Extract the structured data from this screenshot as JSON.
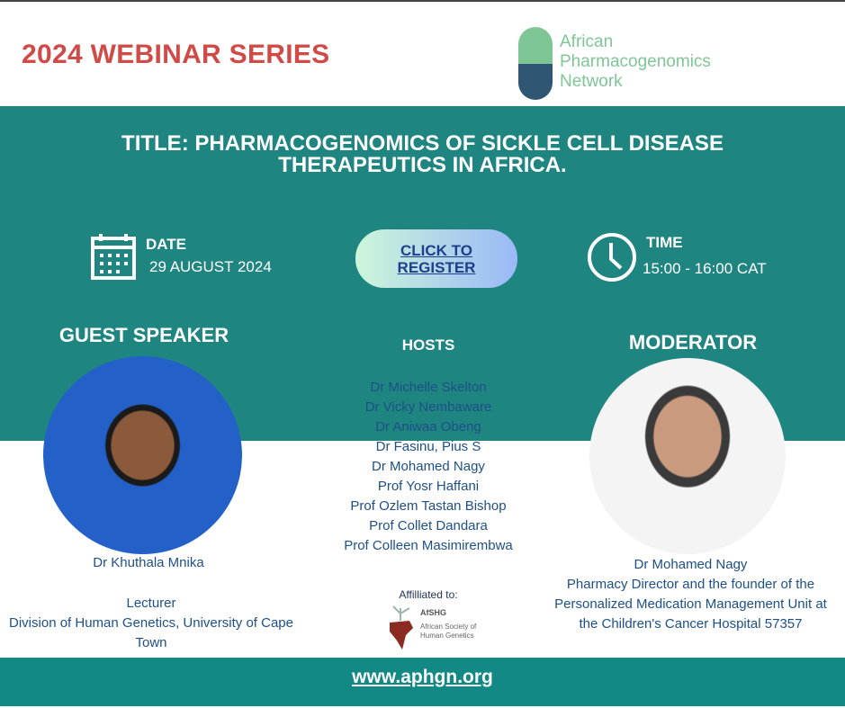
{
  "series_title": "2024 WEBINAR SERIES",
  "logo": {
    "line1": "African",
    "line2": "Pharmacogenomics",
    "line3": "Network"
  },
  "title": {
    "line1": "TITLE:  PHARMACOGENOMICS OF SICKLE CELL DISEASE",
    "line2": "THERAPEUTICS IN AFRICA."
  },
  "date": {
    "label": "DATE",
    "value": "29 AUGUST 2024",
    "icon": "calendar-icon"
  },
  "register": {
    "line1": "CLICK TO",
    "line2": "REGISTER"
  },
  "time": {
    "label": "TIME",
    "value": "15:00 - 16:00 CAT",
    "icon": "clock-icon"
  },
  "guest": {
    "heading": "GUEST SPEAKER",
    "name": "Dr Khuthala Mnika",
    "role": "Lecturer",
    "affiliation": "Division of Human Genetics, University of Cape Town"
  },
  "hosts": {
    "heading": "HOSTS",
    "names": [
      "Dr Michelle Skelton",
      "Dr Vicky Nembaware",
      "Dr Aniwaa Obeng",
      "Dr Fasinu, Pius S",
      "Dr Mohamed Nagy",
      "Prof Yosr Haffani",
      "Prof Ozlem Tastan Bishop",
      "Prof Collet Dandara",
      "Prof Colleen Masimirembwa"
    ]
  },
  "affiliated": {
    "label": "Affilliated to:",
    "org_abbr": "AfSHG",
    "org_name": "African Society of Human Genetics"
  },
  "moderator": {
    "heading": "MODERATOR",
    "name": "Dr Mohamed Nagy",
    "bio": "Pharmacy Director and the founder of the Personalized Medication Management Unit at the Children's Cancer Hospital 57357"
  },
  "footer": {
    "url": "www.aphgn.org"
  },
  "colors": {
    "teal": "#1f8580",
    "footer": "#138985",
    "red": "#d04b47",
    "blue_text": "#1d5088"
  }
}
